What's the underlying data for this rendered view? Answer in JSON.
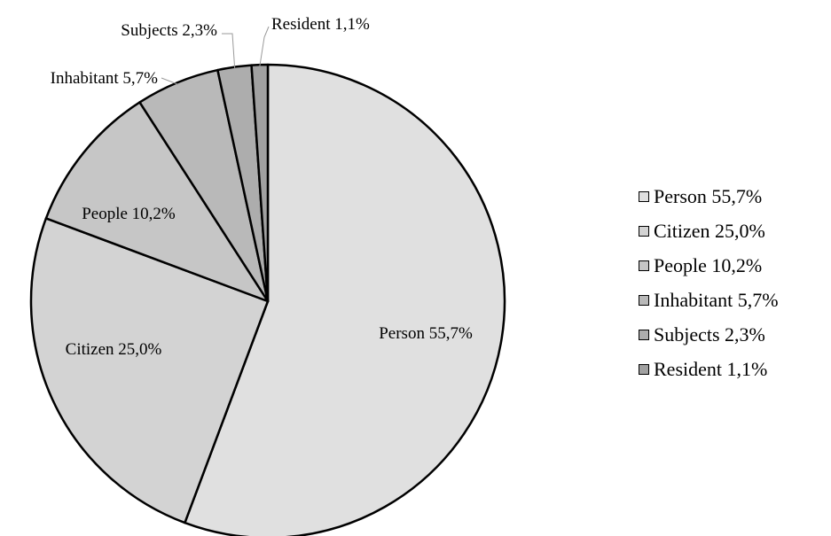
{
  "chart_data": {
    "type": "pie",
    "title": "",
    "slices": [
      {
        "name": "Person",
        "value": 55.7,
        "label": "Person 55,7%",
        "color": "#e0e0e0"
      },
      {
        "name": "Citizen",
        "value": 25.0,
        "label": "Citizen 25,0%",
        "color": "#d3d3d3"
      },
      {
        "name": "People",
        "value": 10.2,
        "label": "People 10,2%",
        "color": "#c6c6c6"
      },
      {
        "name": "Inhabitant",
        "value": 5.7,
        "label": "Inhabitant 5,7%",
        "color": "#b9b9b9"
      },
      {
        "name": "Subjects",
        "value": 2.3,
        "label": "Subjects 2,3%",
        "color": "#adadad"
      },
      {
        "name": "Resident",
        "value": 1.1,
        "label": "Resident 1,1%",
        "color": "#a1a1a1"
      }
    ],
    "legend_position": "right"
  }
}
